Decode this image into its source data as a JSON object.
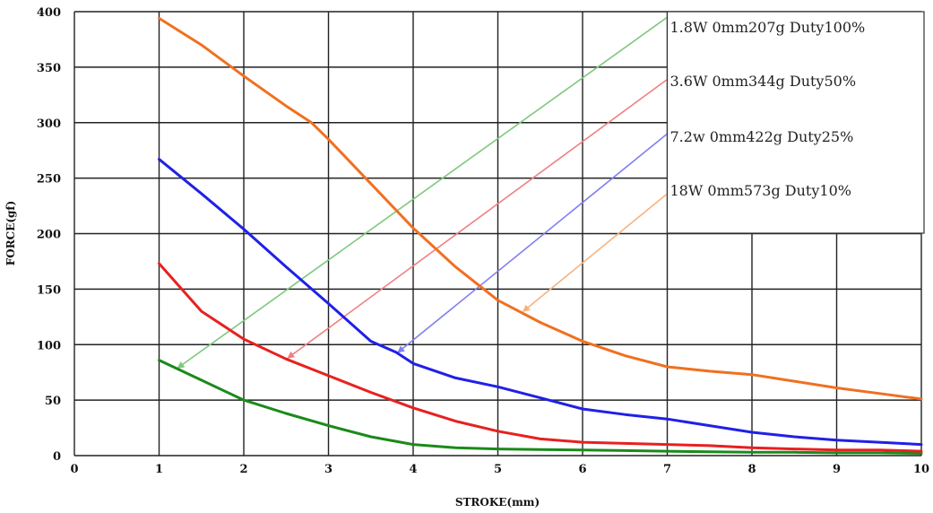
{
  "chart_data": {
    "type": "line",
    "xlabel": "STROKE(mm)",
    "ylabel": "FORCE(gf)",
    "xlim": [
      0,
      10
    ],
    "ylim": [
      0,
      400
    ],
    "x_ticks": [
      0,
      1,
      2,
      3,
      4,
      5,
      6,
      7,
      8,
      9,
      10
    ],
    "y_ticks": [
      0,
      50,
      100,
      150,
      200,
      250,
      300,
      350,
      400
    ],
    "grid": true,
    "legend_position": "top-right",
    "series": [
      {
        "name": "1.8W 0mm207g Duty100%",
        "color": "#1a8a1a",
        "pointer_color": "#7fc97f",
        "x": [
          1,
          1.5,
          2,
          2.5,
          3,
          3.5,
          4,
          4.5,
          5,
          5.5,
          6,
          6.5,
          7,
          7.5,
          8,
          8.5,
          9,
          9.5,
          10
        ],
        "y": [
          86,
          68,
          50,
          38,
          27,
          17,
          10,
          7,
          6,
          5.5,
          5,
          4.5,
          4,
          3.5,
          3,
          3,
          2.5,
          2.5,
          2
        ]
      },
      {
        "name": "3.6W 0mm344g Duty50%",
        "color": "#e82020",
        "pointer_color": "#f08080",
        "x": [
          1,
          1.5,
          2,
          2.5,
          3,
          3.5,
          4,
          4.5,
          5,
          5.5,
          6,
          6.5,
          7,
          7.5,
          8,
          8.5,
          9,
          9.5,
          10
        ],
        "y": [
          173,
          130,
          105,
          87,
          72,
          57,
          43,
          31,
          22,
          15,
          12,
          11,
          10,
          9,
          7,
          6,
          5,
          5,
          4
        ]
      },
      {
        "name": "7.2w 0mm422g Duty25%",
        "color": "#2020e8",
        "pointer_color": "#8080f0",
        "x": [
          1,
          1.5,
          2,
          2.5,
          3,
          3.5,
          3.8,
          4,
          4.5,
          5,
          5.5,
          6,
          6.5,
          7,
          7.5,
          8,
          8.5,
          9,
          9.5,
          10
        ],
        "y": [
          267,
          236,
          204,
          170,
          137,
          103,
          93,
          83,
          70,
          62,
          52,
          42,
          37,
          33,
          27,
          21,
          17,
          14,
          12,
          10
        ]
      },
      {
        "name": "18W 0mm573g Duty10%",
        "color": "#f07020",
        "pointer_color": "#f7b27f",
        "x": [
          1,
          1.5,
          2,
          2.5,
          2.8,
          3,
          3.5,
          4,
          4.5,
          5,
          5.5,
          6,
          6.5,
          7,
          7.5,
          8,
          8.5,
          9,
          9.5,
          10
        ],
        "y": [
          394,
          370,
          342,
          315,
          300,
          285,
          245,
          205,
          170,
          140,
          120,
          103,
          90,
          80,
          76,
          73,
          67,
          61,
          56,
          51
        ]
      }
    ],
    "pointers": [
      {
        "series": "1.8W 0mm207g Duty100%",
        "from": [
          7.0,
          395
        ],
        "to": [
          1.22,
          79
        ]
      },
      {
        "series": "3.6W 0mm344g Duty50%",
        "from": [
          7.0,
          339
        ],
        "to": [
          2.52,
          88
        ]
      },
      {
        "series": "7.2w 0mm422g Duty25%",
        "from": [
          7.0,
          290
        ],
        "to": [
          3.82,
          93
        ]
      },
      {
        "series": "18W 0mm573g Duty10%",
        "from": [
          7.0,
          236
        ],
        "to": [
          5.3,
          130
        ]
      }
    ]
  }
}
